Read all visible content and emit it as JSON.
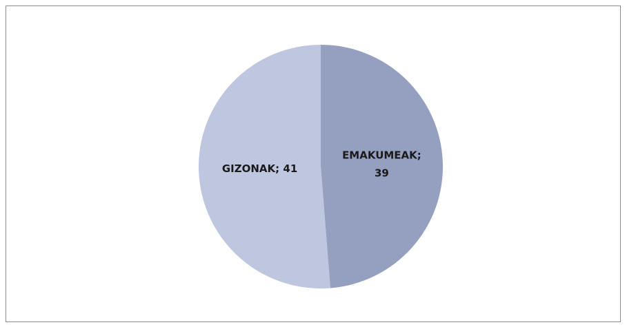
{
  "chart_data": {
    "type": "pie",
    "categories": [
      "EMAKUMEAK",
      "GIZONAK"
    ],
    "values": [
      39,
      41
    ],
    "value_labels": [
      "EMAKUMEAK; 39",
      "GIZONAK; 41"
    ],
    "colors": [
      "#959fbf",
      "#bec6e0"
    ]
  }
}
